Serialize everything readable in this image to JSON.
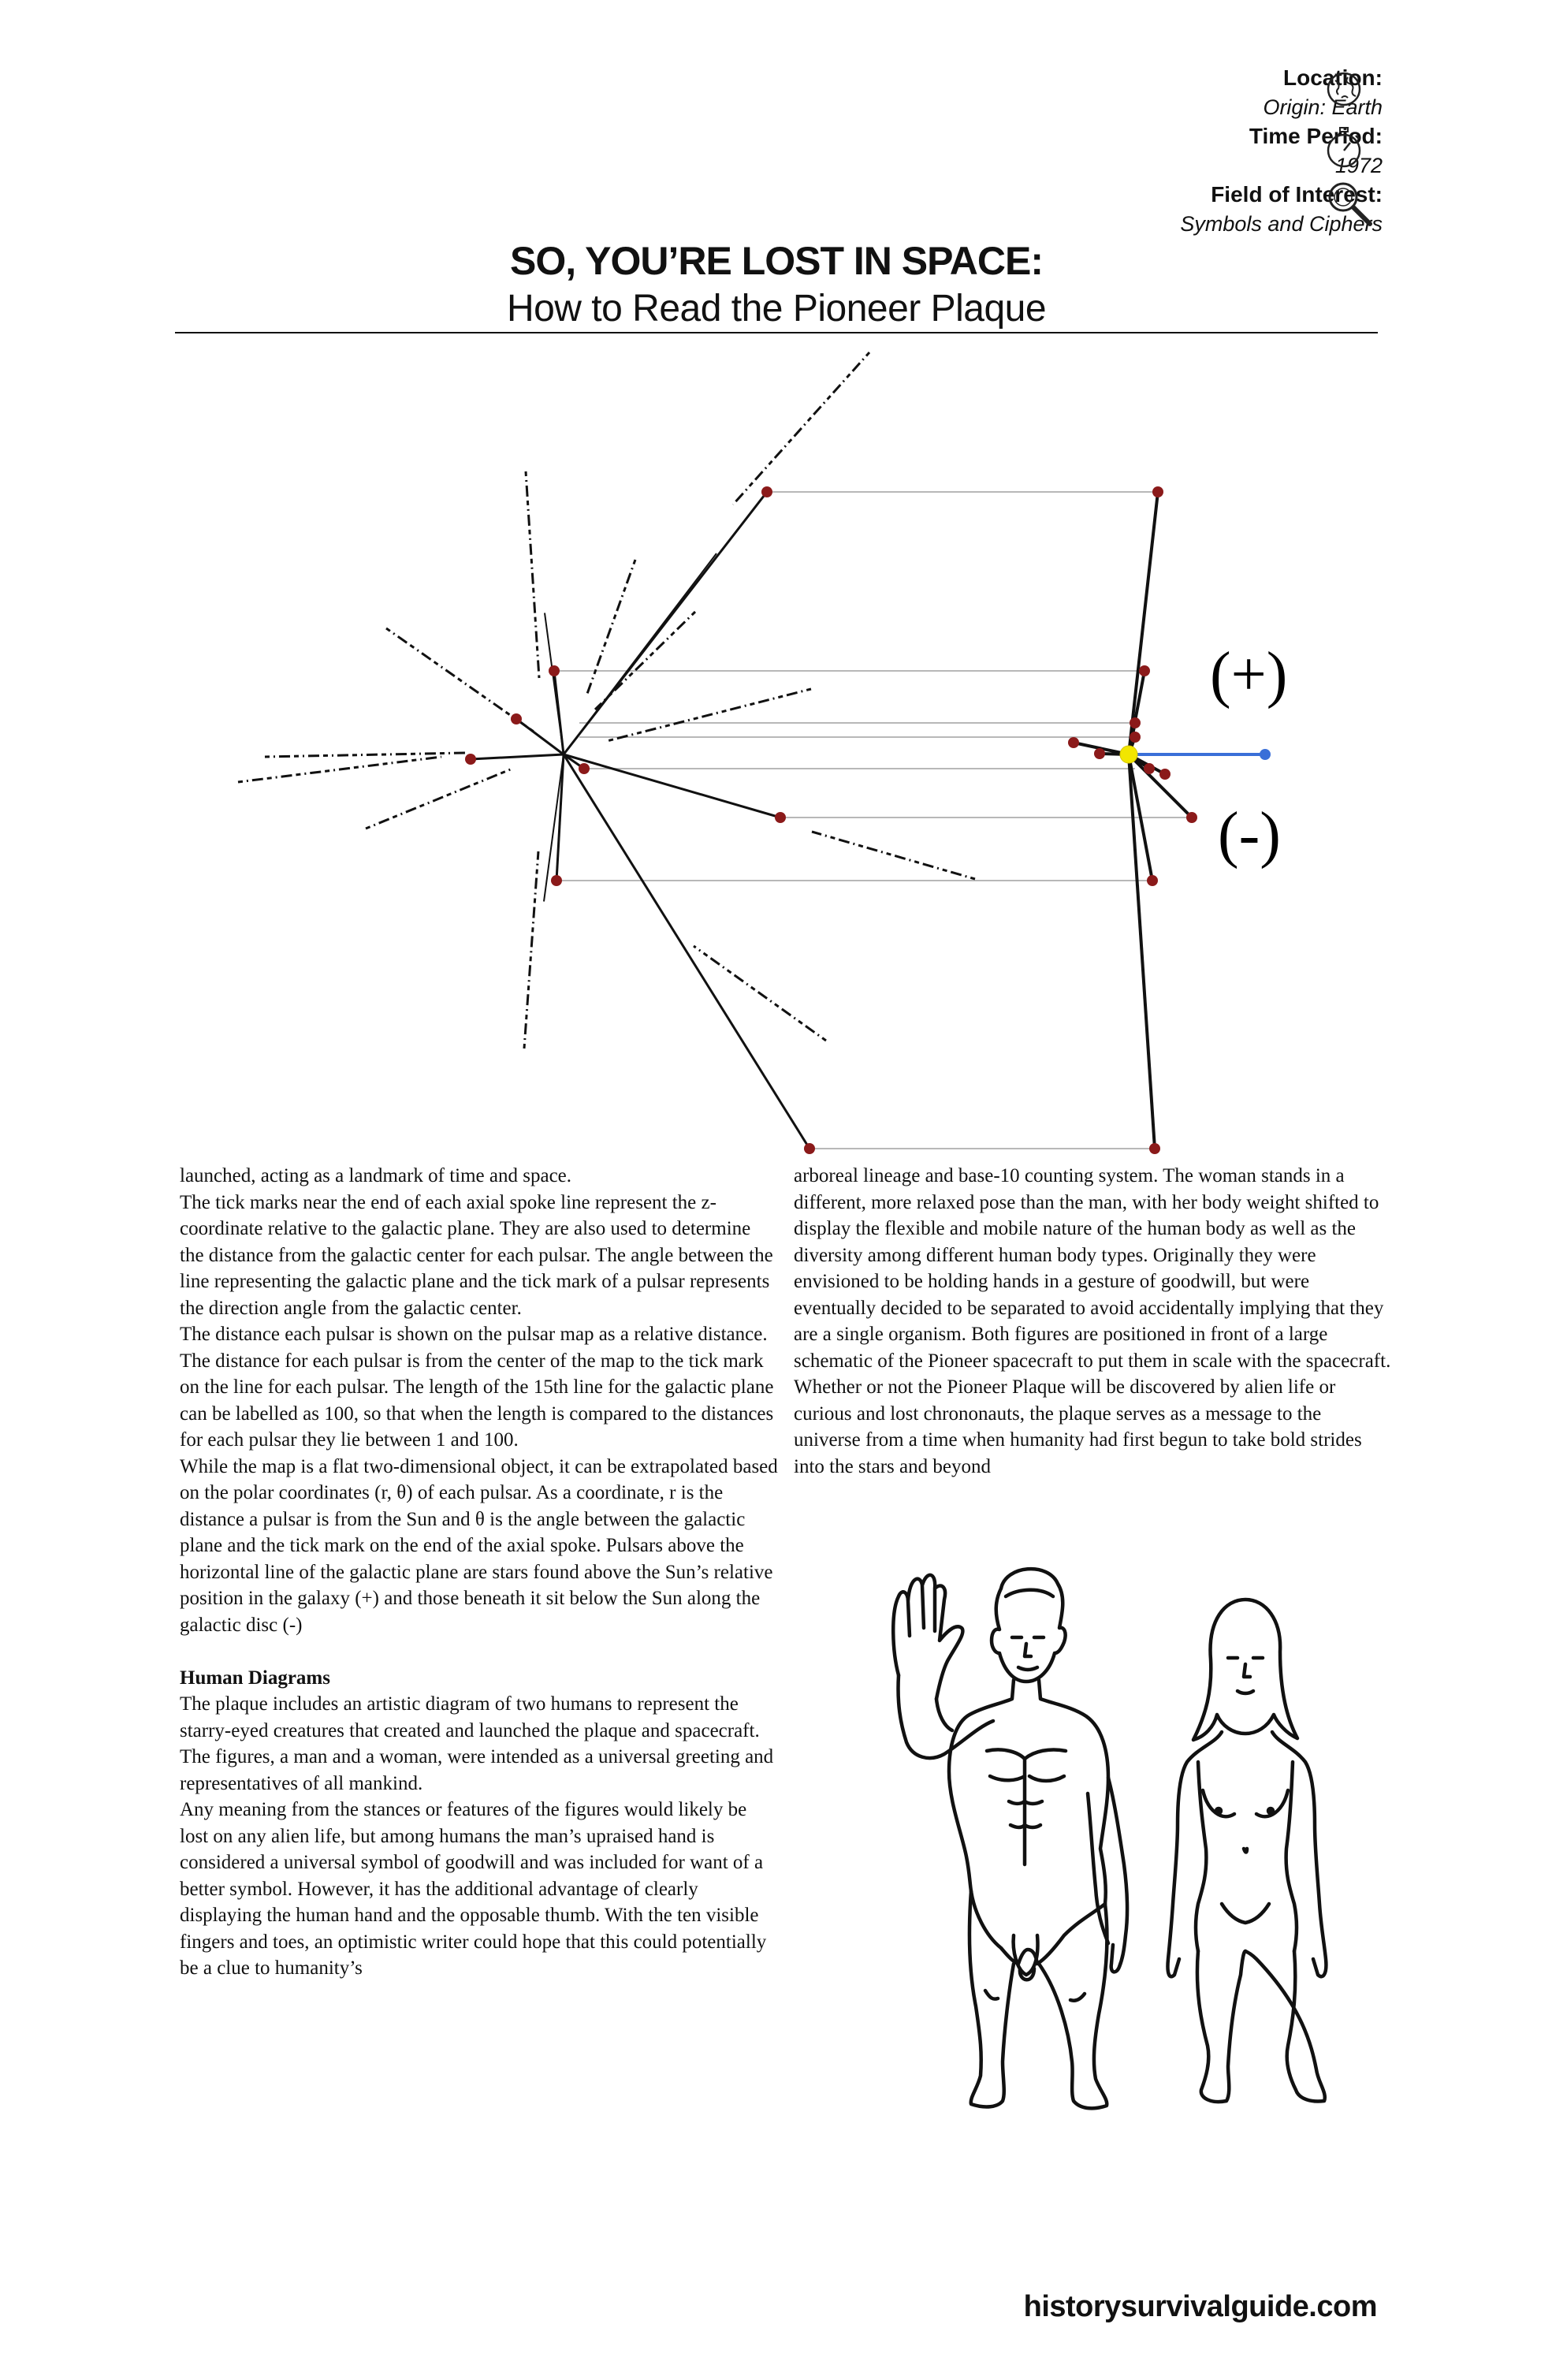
{
  "meta": {
    "location_label": "Location:",
    "location_value": "Origin: Earth",
    "time_label": "Time Period:",
    "time_value": "1972",
    "field_label": "Field of Interest:",
    "field_value": "Symbols and Ciphers",
    "icons": [
      "globe-icon",
      "stopwatch-icon",
      "magnifier-icon"
    ]
  },
  "title": {
    "line1": "SO, YOU’RE LOST IN SPACE:",
    "line2": "How to Read the Pioneer Plaque"
  },
  "diagram": {
    "plus_label": "(+)",
    "minus_label": "(-)",
    "colors": {
      "pulsar_dot": "#8b1a1a",
      "sun": "#f2e600",
      "ray": "#3a6fd8",
      "guide": "#b8b8b8"
    }
  },
  "body": {
    "left": [
      "launched, acting as a landmark of time and space.",
      "The tick marks near the end of each axial spoke line represent the z-coordinate relative to the galactic plane. They are also used to determine the distance from the galactic center for each pulsar. The angle between the line representing the galactic plane and the tick mark of a pulsar represents the direction angle from the galactic center.",
      "The distance each pulsar is shown on the pulsar map as a relative distance. The distance for each pulsar is from the center of the map to the tick mark on the line for each pulsar. The length of the 15th line for the galactic plane can be labelled as 100, so that when the length is compared to the distances for each pulsar they lie between 1 and 100.",
      "While the map is a flat two-dimensional object, it can be extrapolated based on the polar coordinates (r, θ) of each pulsar. As a coordinate, r is the distance a pulsar is from the Sun and θ is the angle between the galactic plane and the tick mark on the end of the axial spoke. Pulsars above the horizontal line of the galactic plane are stars found above the Sun’s relative position in the galaxy (+) and those beneath it sit below the Sun along the galactic disc (-)"
    ],
    "heading": "Human Diagrams",
    "left_after": [
      "The plaque includes an artistic diagram of two humans to represent the starry-eyed creatures that created and launched the plaque and spacecraft. The figures, a man and a woman, were intended as a universal greeting and representatives of all mankind.",
      "Any meaning from the stances or features of the figures would likely be lost on any alien life, but among humans the man’s upraised hand is considered a universal symbol of goodwill and was included for want of a better symbol. However, it has the additional advantage of clearly displaying the human hand and the opposable thumb. With the ten visible fingers and toes, an optimistic writer could hope that this could potentially be a clue to humanity’s"
    ],
    "right": [
      "arboreal lineage and base-10 counting system. The woman stands in a different, more relaxed pose than the man, with her body weight shifted to display the flexible and mobile nature of the human body as well as the diversity among different human body types. Originally they were envisioned to be holding hands in a gesture of goodwill, but were eventually decided to be separated to avoid accidentally implying that they are a single organism. Both figures are positioned in front of a large schematic of the Pioneer spacecraft to put them in scale with the spacecraft. Whether or not the Pioneer Plaque will be discovered by alien life or curious and lost chrononauts, the plaque serves as a message to the universe from a time when humanity had first begun to take bold strides into the stars and beyond"
    ]
  },
  "footer": "historysurvivalguide.com"
}
